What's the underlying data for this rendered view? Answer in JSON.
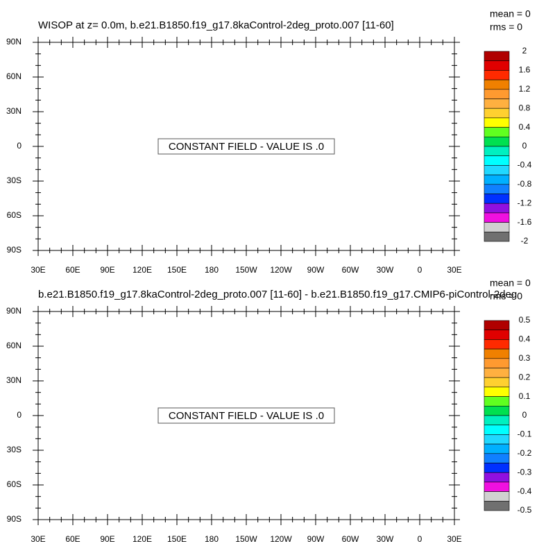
{
  "chart_data": [
    {
      "type": "contour",
      "title": "WISOP at z=   0.0m, b.e21.B1850.f19_g17.8kaControl-2deg_proto.007 [11-60]",
      "stats": [
        "mean = 0",
        "rms = 0"
      ],
      "annotation": "CONSTANT FIELD - VALUE IS .0",
      "xlim": [
        30,
        390
      ],
      "xticks": [
        {
          "value": 30,
          "label": "30E"
        },
        {
          "value": 60,
          "label": "60E"
        },
        {
          "value": 90,
          "label": "90E"
        },
        {
          "value": 120,
          "label": "120E"
        },
        {
          "value": 150,
          "label": "150E"
        },
        {
          "value": 180,
          "label": "180"
        },
        {
          "value": 210,
          "label": "150W"
        },
        {
          "value": 240,
          "label": "120W"
        },
        {
          "value": 270,
          "label": "90W"
        },
        {
          "value": 300,
          "label": "60W"
        },
        {
          "value": 330,
          "label": "30W"
        },
        {
          "value": 360,
          "label": "0"
        },
        {
          "value": 390,
          "label": "30E"
        }
      ],
      "ylim": [
        -90,
        90
      ],
      "yticks": [
        {
          "value": -90,
          "label": "90S"
        },
        {
          "value": -60,
          "label": "60S"
        },
        {
          "value": -30,
          "label": "30S"
        },
        0,
        {
          "value": 30,
          "label": "30N"
        },
        {
          "value": 60,
          "label": "60N"
        },
        {
          "value": 90,
          "label": "90N"
        }
      ],
      "colorbar": {
        "levels": [
          2,
          1.6,
          1.2,
          0.8,
          0.4,
          0,
          -0.4,
          -0.8,
          -1.2,
          -1.6,
          -2
        ],
        "colors": [
          "#b00000",
          "#e00000",
          "#ff2a00",
          "#f08000",
          "#ff9a30",
          "#ffb040",
          "#ffd030",
          "#ffff00",
          "#60ff20",
          "#00e050",
          "#00f0c0",
          "#00ffff",
          "#20d8ff",
          "#00b0ff",
          "#1080ff",
          "#0030ff",
          "#9010e0",
          "#f010e0",
          "#d0d0d0",
          "#707070"
        ]
      }
    },
    {
      "type": "contour",
      "title": "b.e21.B1850.f19_g17.8kaControl-2deg_proto.007 [11-60] - b.e21.B1850.f19_g17.CMIP6-piControl-2deg",
      "stats": [
        "mean = 0",
        "rms = 0"
      ],
      "annotation": "CONSTANT FIELD - VALUE IS .0",
      "xlim": [
        30,
        390
      ],
      "xticks": [
        {
          "value": 30,
          "label": "30E"
        },
        {
          "value": 60,
          "label": "60E"
        },
        {
          "value": 90,
          "label": "90E"
        },
        {
          "value": 120,
          "label": "120E"
        },
        {
          "value": 150,
          "label": "150E"
        },
        {
          "value": 180,
          "label": "180"
        },
        {
          "value": 210,
          "label": "150W"
        },
        {
          "value": 240,
          "label": "120W"
        },
        {
          "value": 270,
          "label": "90W"
        },
        {
          "value": 300,
          "label": "60W"
        },
        {
          "value": 330,
          "label": "30W"
        },
        {
          "value": 360,
          "label": "0"
        },
        {
          "value": 390,
          "label": "30E"
        }
      ],
      "ylim": [
        -90,
        90
      ],
      "yticks": [
        {
          "value": -90,
          "label": "90S"
        },
        {
          "value": -60,
          "label": "60S"
        },
        {
          "value": -30,
          "label": "30S"
        },
        0,
        {
          "value": 30,
          "label": "30N"
        },
        {
          "value": 60,
          "label": "60N"
        },
        {
          "value": 90,
          "label": "90N"
        }
      ],
      "colorbar": {
        "levels": [
          0.5,
          0.4,
          0.3,
          0.2,
          0.1,
          0,
          -0.1,
          -0.2,
          -0.3,
          -0.4,
          -0.5
        ],
        "colors": [
          "#b00000",
          "#e00000",
          "#ff2a00",
          "#f08000",
          "#ff9a30",
          "#ffb040",
          "#ffd030",
          "#ffff00",
          "#60ff20",
          "#00e050",
          "#00f0c0",
          "#00ffff",
          "#20d8ff",
          "#00b0ff",
          "#1080ff",
          "#0030ff",
          "#9010e0",
          "#f010e0",
          "#d0d0d0",
          "#707070"
        ]
      }
    }
  ]
}
